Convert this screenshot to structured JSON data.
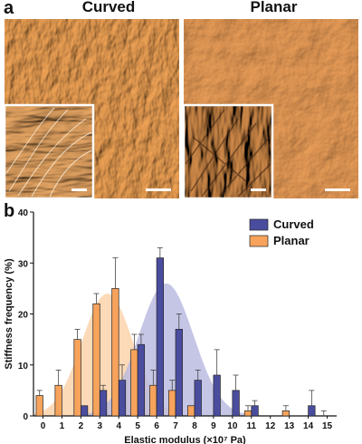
{
  "panel_a": {
    "letter": "a",
    "images": [
      {
        "title": "Curved",
        "style": "curved"
      },
      {
        "title": "Planar",
        "style": "planar"
      }
    ]
  },
  "panel_b": {
    "letter": "b"
  },
  "colors": {
    "curved_bar": "#4a4d9e",
    "planar_bar": "#f7a35c",
    "curved_fill": "#b7b8e0",
    "planar_fill": "#fbd3ac",
    "afm_base": "#d9843a"
  },
  "chart_data": {
    "type": "bar",
    "title": "",
    "xlabel": "Elastic modulus (×10⁷ Pa)",
    "ylabel": "Stiffness frequency (%)",
    "ylim": [
      0,
      40
    ],
    "yticks": [
      0,
      10,
      20,
      30,
      40
    ],
    "categories": [
      "0",
      "1",
      "2",
      "3",
      "4",
      "5",
      "6",
      "7",
      "8",
      "9",
      "10",
      "11",
      "12",
      "13",
      "14",
      "15"
    ],
    "series": [
      {
        "name": "Curved",
        "color": "#4a4d9e",
        "values": [
          0,
          0,
          2,
          5,
          7,
          14,
          31,
          17,
          7,
          8,
          5,
          2,
          0,
          0,
          2,
          0
        ],
        "errors": [
          0,
          0,
          0,
          1,
          3,
          2,
          2,
          3,
          2,
          5,
          3,
          1,
          0,
          0,
          3,
          0
        ]
      },
      {
        "name": "Planar",
        "color": "#f7a35c",
        "values": [
          4,
          6,
          15,
          22,
          25,
          13,
          6,
          5,
          2,
          0,
          0,
          1,
          0,
          1,
          0,
          0
        ],
        "errors": [
          1,
          3,
          2,
          2,
          6,
          3,
          3,
          2,
          0,
          0,
          0,
          1,
          0,
          1,
          0,
          1
        ]
      }
    ],
    "legend": {
      "position": "top-right"
    }
  }
}
